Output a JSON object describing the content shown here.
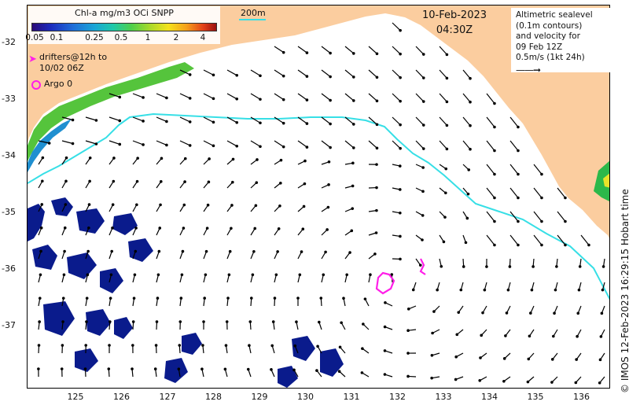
{
  "map": {
    "colorbar": {
      "title": "Chl-a mg/m3 OCi SNPP",
      "ticks": [
        "0.05",
        "0.1",
        "0.25",
        "0.5",
        "1",
        "2",
        "4"
      ]
    },
    "date": "10-Feb-2023",
    "time": "04:30Z",
    "altimetry_note": [
      "Altimetric sealevel",
      "(0.1m contours)",
      "and velocity for",
      "09 Feb 12Z",
      "0.5m/s (1kt 24h)"
    ],
    "isobath_label": "200m",
    "legend": {
      "drifters": [
        "drifters@12h to",
        "10/02 06Z"
      ],
      "argo": "Argo 0"
    },
    "y_ticks": [
      "-32",
      "-33",
      "-34",
      "-35",
      "-36",
      "-37"
    ],
    "x_ticks": [
      "125",
      "126",
      "127",
      "128",
      "129",
      "130",
      "131",
      "132",
      "133",
      "134",
      "135",
      "136"
    ],
    "credit": "© IMOS 12-Feb-2023 16:29:15 Hobart time",
    "colors": {
      "land": "#fbcd9f",
      "isobath": "#37dfe6",
      "drifter": "#ff1fe8",
      "arrow": "#000000"
    }
  }
}
